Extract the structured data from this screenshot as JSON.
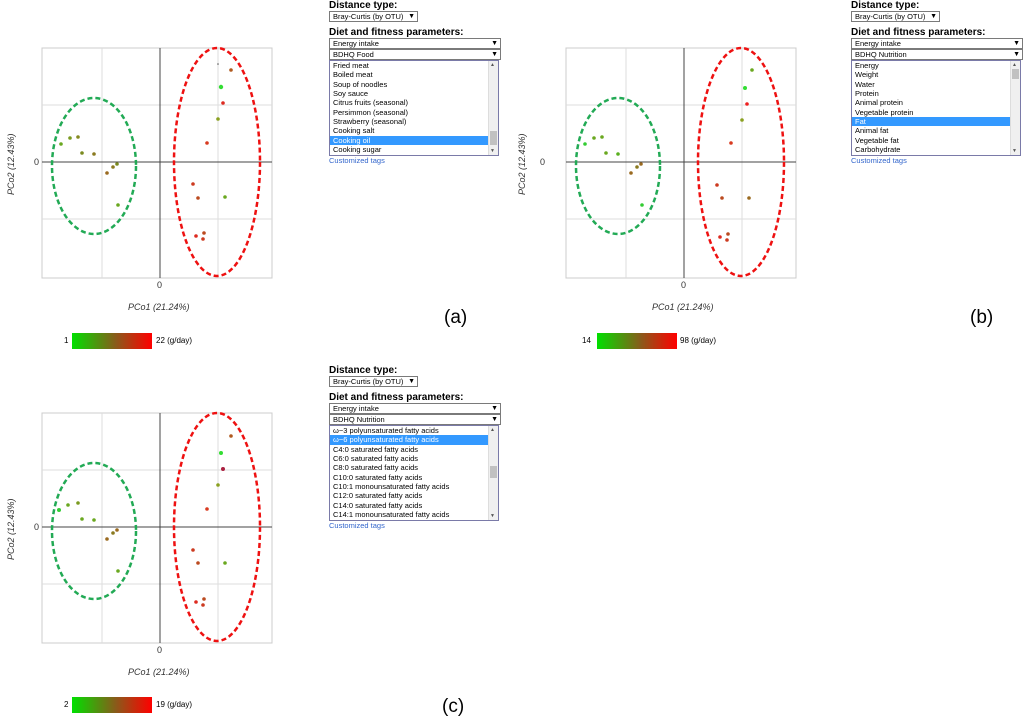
{
  "panels": [
    {
      "id": "a",
      "label": "(a)",
      "plot": {
        "xlabel": "PCo1 (21.24%)",
        "ylabel": "PCo2 (12.43%)",
        "x_zero": "0",
        "y_zero": "0"
      },
      "controls": {
        "distance_title": "Distance type:",
        "distance_value": "Bray-Curtis (by OTU)",
        "params_title": "Diet and fitness parameters:",
        "select1": "Energy intake",
        "select2": "BDHQ Food",
        "options": [
          "Fried meat",
          "Boiled meat",
          "Soup of noodles",
          "Soy sauce",
          "Citrus fruits (seasonal)",
          "Persimmon (seasonal)",
          "Strawberry (seasonal)",
          "Cooking salt",
          "Cooking oil",
          "Cooking sugar"
        ],
        "selected_index": 8,
        "link": "Customized tags"
      },
      "legend": {
        "min": "1",
        "max": "22 (g/day)"
      }
    },
    {
      "id": "b",
      "label": "(b)",
      "plot": {
        "xlabel": "PCo1 (21.24%)",
        "ylabel": "PCo2 (12.43%)",
        "x_zero": "0",
        "y_zero": "0"
      },
      "controls": {
        "distance_title": "Distance type:",
        "distance_value": "Bray-Curtis (by OTU)",
        "params_title": "Diet and fitness parameters:",
        "select1": "Energy intake",
        "select2": "BDHQ Nutrition",
        "options": [
          "Energy",
          "Weight",
          "Water",
          "Protein",
          "Animal protein",
          "Vegetable protein",
          "Fat",
          "Animal fat",
          "Vegetable fat",
          "Carbohydrate"
        ],
        "selected_index": 6,
        "link": "Customized tags"
      },
      "legend": {
        "min": "14",
        "max": "98 (g/day)"
      }
    },
    {
      "id": "c",
      "label": "(c)",
      "plot": {
        "xlabel": "PCo1 (21.24%)",
        "ylabel": "PCo2 (12.43%)",
        "x_zero": "0",
        "y_zero": "0"
      },
      "controls": {
        "distance_title": "Distance type:",
        "distance_value": "Bray-Curtis (by OTU)",
        "params_title": "Diet and fitness parameters:",
        "select1": "Energy intake",
        "select2": "BDHQ Nutrition",
        "options": [
          "ω−3 polyunsaturated fatty acids",
          "ω−6 polyunsaturated fatty acids",
          "C4:0 saturated fatty acids",
          "C6:0 saturated fatty acids",
          "C8:0 saturated fatty acids",
          "C10:0 saturated fatty acids",
          "C10:1 monounsaturated fatty acids",
          "C12:0 saturated fatty acids",
          "C14:0 saturated fatty acids",
          "C14:1 monounsaturated fatty acids"
        ],
        "selected_index": 1,
        "link": "Customized tags"
      },
      "legend": {
        "min": "2",
        "max": "19 (g/day)"
      }
    }
  ],
  "colors": {
    "green_cluster": "#22aa55",
    "red_cluster": "#ee1111",
    "selection": "#3399ff",
    "link": "#3366cc"
  }
}
